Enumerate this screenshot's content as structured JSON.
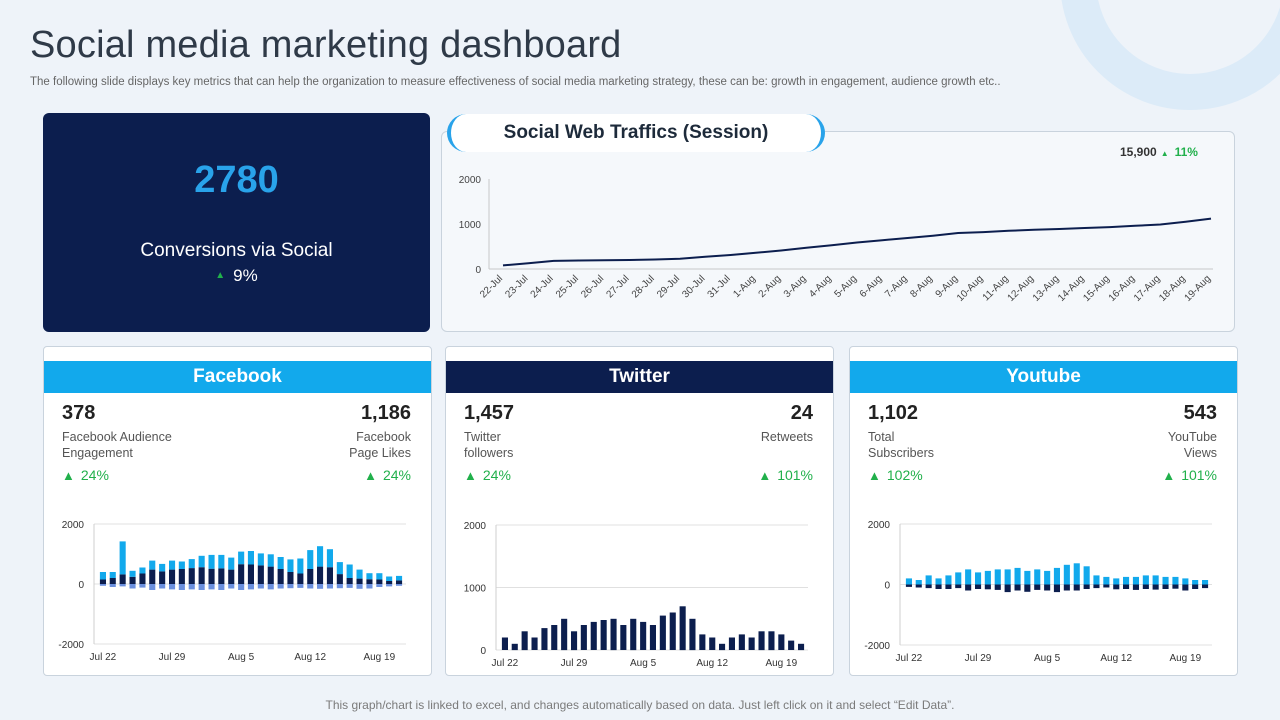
{
  "title": "Social media marketing dashboard",
  "subtitle": "The following slide displays key metrics that can help the organization to measure effectiveness of social media marketing strategy, these can be: growth in engagement, audience growth etc..",
  "footer": "This graph/chart is linked to excel,  and changes automatically based on data. Just left click on it and select “Edit Data”.",
  "colors": {
    "navy": "#0c1e4e",
    "blue": "#12a9ec",
    "green": "#21b04b",
    "accent_neg": "#6a8fde"
  },
  "kpi": {
    "value": "2780",
    "label": "Conversions via Social",
    "change": "9%"
  },
  "traffic": {
    "title": "Social Web Traffics (Session)",
    "stat_value": "15,900",
    "stat_change": "11%"
  },
  "facebook": {
    "header": "Facebook",
    "left": {
      "value": "378",
      "label": "Facebook Audience Engagement",
      "change": "24%"
    },
    "right": {
      "value": "1,186",
      "label": "Facebook Page Likes",
      "change": "24%"
    }
  },
  "twitter": {
    "header": "Twitter",
    "left": {
      "value": "1,457",
      "label": "Twitter followers",
      "change": "24%"
    },
    "right": {
      "value": "24",
      "label": "Retweets",
      "change": "101%"
    }
  },
  "youtube": {
    "header": "Youtube",
    "left": {
      "value": "1,102",
      "label": "Total Subscribers",
      "change": "102%"
    },
    "right": {
      "value": "543",
      "label": "YouTube Views",
      "change": "101%"
    }
  },
  "chart_data": [
    {
      "id": "traffic",
      "type": "line",
      "title": "Social Web Traffics (Session)",
      "x": [
        "22-Jul",
        "23-Jul",
        "24-Jul",
        "25-Jul",
        "26-Jul",
        "27-Jul",
        "28-Jul",
        "29-Jul",
        "30-Jul",
        "31-Jul",
        "1-Aug",
        "2-Aug",
        "3-Aug",
        "4-Aug",
        "5-Aug",
        "6-Aug",
        "7-Aug",
        "8-Aug",
        "9-Aug",
        "10-Aug",
        "11-Aug",
        "12-Aug",
        "13-Aug",
        "14-Aug",
        "15-Aug",
        "16-Aug",
        "17-Aug",
        "18-Aug",
        "19-Aug"
      ],
      "values": [
        80,
        130,
        180,
        190,
        195,
        200,
        210,
        230,
        270,
        310,
        360,
        410,
        470,
        530,
        590,
        640,
        690,
        740,
        800,
        820,
        850,
        870,
        890,
        910,
        930,
        960,
        990,
        1050,
        1120
      ],
      "ylim": [
        0,
        2000
      ],
      "yticks": [
        0,
        1000,
        2000
      ],
      "grid": false
    },
    {
      "id": "facebook",
      "type": "bar",
      "stacked": true,
      "x_ticks": [
        "Jul 22",
        "Jul 29",
        "Aug 5",
        "Aug 12",
        "Aug 19"
      ],
      "ylim": [
        -2000,
        2000
      ],
      "yticks": [
        -2000,
        0,
        2000
      ],
      "series": [
        {
          "name": "Engagement",
          "color": "#0c1e4e",
          "values": [
            150,
            200,
            320,
            240,
            350,
            480,
            420,
            480,
            500,
            530,
            560,
            510,
            520,
            480,
            660,
            650,
            620,
            580,
            500,
            400,
            350,
            500,
            580,
            560,
            330,
            200,
            180,
            160,
            150,
            100,
            120
          ]
        },
        {
          "name": "Page Likes",
          "color": "#12a9ec",
          "values": [
            250,
            200,
            1100,
            200,
            200,
            300,
            250,
            300,
            250,
            300,
            380,
            460,
            450,
            400,
            420,
            450,
            400,
            410,
            400,
            420,
            500,
            630,
            680,
            600,
            400,
            450,
            300,
            200,
            210,
            150,
            150
          ]
        },
        {
          "name": "Negative",
          "color": "#6a8fde",
          "values": [
            -60,
            -100,
            -80,
            -150,
            -120,
            -200,
            -150,
            -180,
            -200,
            -180,
            -200,
            -180,
            -200,
            -150,
            -200,
            -180,
            -150,
            -180,
            -150,
            -140,
            -130,
            -150,
            -160,
            -150,
            -140,
            -130,
            -160,
            -150,
            -100,
            -80,
            -60
          ]
        }
      ]
    },
    {
      "id": "twitter",
      "type": "bar",
      "x_ticks": [
        "Jul 22",
        "Jul 29",
        "Aug 5",
        "Aug 12",
        "Aug 19"
      ],
      "ylim": [
        0,
        2000
      ],
      "yticks": [
        0,
        1000,
        2000
      ],
      "series": [
        {
          "name": "Followers",
          "color": "#0c1e4e",
          "values": [
            200,
            100,
            300,
            200,
            350,
            400,
            500,
            300,
            400,
            450,
            480,
            500,
            400,
            500,
            450,
            400,
            550,
            600,
            700,
            500,
            250,
            200,
            100,
            200,
            250,
            200,
            300,
            300,
            250,
            150,
            100
          ]
        }
      ]
    },
    {
      "id": "youtube",
      "type": "bar",
      "x_ticks": [
        "Jul 22",
        "Jul 29",
        "Aug 5",
        "Aug 12",
        "Aug 19"
      ],
      "ylim": [
        -2000,
        2000
      ],
      "yticks": [
        -2000,
        0,
        2000
      ],
      "series": [
        {
          "name": "Subscribers",
          "color": "#12a9ec",
          "values": [
            200,
            150,
            300,
            200,
            300,
            400,
            500,
            400,
            450,
            500,
            500,
            550,
            450,
            500,
            450,
            550,
            650,
            700,
            600,
            300,
            250,
            200,
            250,
            250,
            300,
            300,
            250,
            250,
            200,
            150,
            150
          ]
        },
        {
          "name": "Negative",
          "color": "#0c1e4e",
          "values": [
            -80,
            -100,
            -120,
            -150,
            -150,
            -120,
            -200,
            -150,
            -160,
            -180,
            -250,
            -200,
            -240,
            -180,
            -200,
            -250,
            -200,
            -200,
            -150,
            -120,
            -100,
            -160,
            -150,
            -180,
            -150,
            -170,
            -150,
            -140,
            -200,
            -150,
            -120
          ]
        }
      ]
    }
  ]
}
